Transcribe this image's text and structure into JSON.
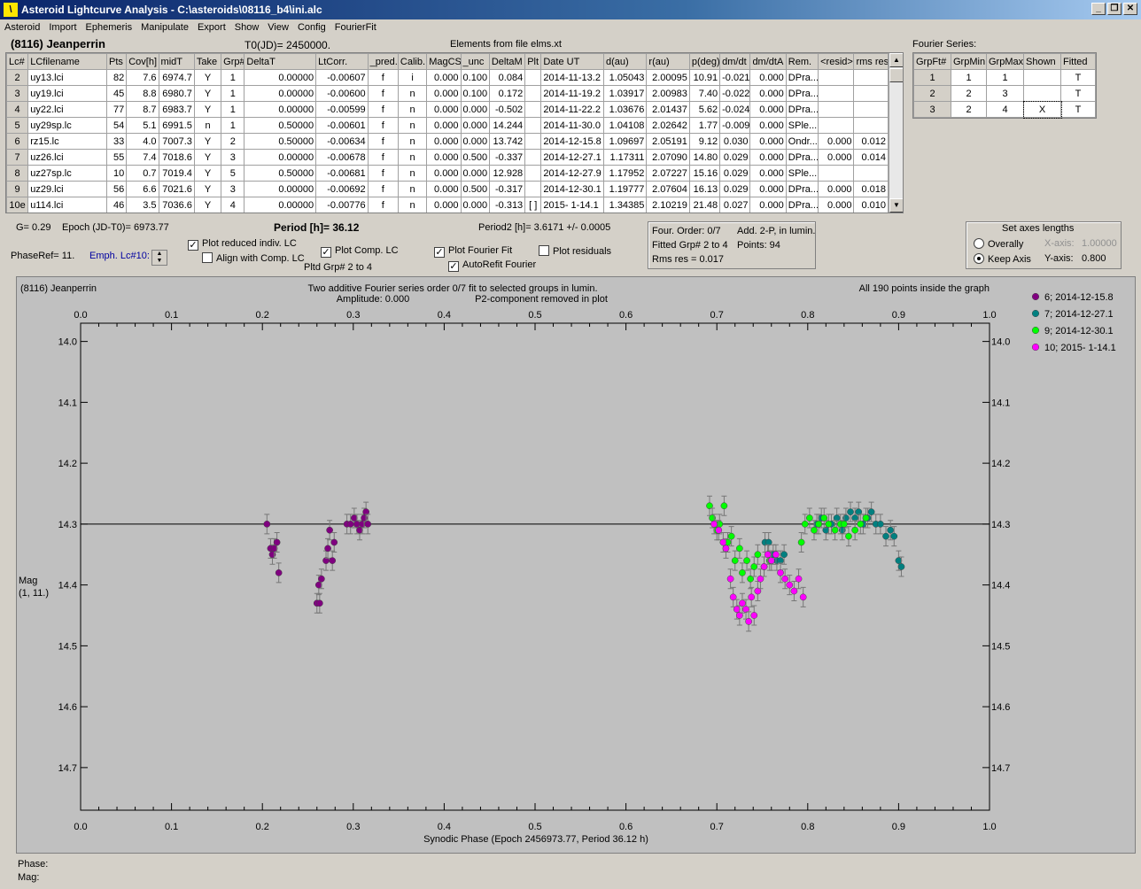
{
  "window": {
    "title": "Asteroid Lightcurve Analysis - C:\\asteroids\\08116_b4\\ini.alc",
    "buttons": [
      "_",
      "\u0005",
      "X"
    ]
  },
  "menu": [
    "Asteroid",
    "Import",
    "Ephemeris",
    "Manipulate",
    "Export",
    "Show",
    "View",
    "Config",
    "FourierFit"
  ],
  "header": {
    "asteroid": "(8116) Jeanperrin",
    "t0": "T0(JD)= 2450000.",
    "elements": "Elements from file elms.xt",
    "fourier_title": "Fourier Series:"
  },
  "table": {
    "columns": [
      "Lc#",
      "LCfilename",
      "Pts",
      "Cov[h]",
      "midT",
      "Take",
      "Grp#",
      "DeltaT",
      "LtCorr.",
      "_pred.",
      "Calib.",
      "MagCS",
      "_unc",
      "DeltaM",
      "Plt",
      "Date UT",
      "d(au)",
      "r(au)",
      "p(deg)",
      "dm/dt",
      "dm/dtA",
      "Rem.",
      "<resid>",
      "rms res"
    ],
    "rows": [
      [
        "2",
        "uy13.lci",
        "82",
        "7.6",
        "6974.7",
        "Y",
        "1",
        "0.00000",
        "-0.00607",
        "f",
        "i",
        "0.000",
        "0.100",
        "0.084",
        "",
        "2014-11-13.2",
        "1.05043",
        "2.00095",
        "10.91",
        "-0.021",
        "0.000",
        "DPra...",
        "",
        ""
      ],
      [
        "3",
        "uy19.lci",
        "45",
        "8.8",
        "6980.7",
        "Y",
        "1",
        "0.00000",
        "-0.00600",
        "f",
        "n",
        "0.000",
        "0.100",
        "0.172",
        "",
        "2014-11-19.2",
        "1.03917",
        "2.00983",
        "7.40",
        "-0.022",
        "0.000",
        "DPra...",
        "",
        ""
      ],
      [
        "4",
        "uy22.lci",
        "77",
        "8.7",
        "6983.7",
        "Y",
        "1",
        "0.00000",
        "-0.00599",
        "f",
        "n",
        "0.000",
        "0.000",
        "-0.502",
        "",
        "2014-11-22.2",
        "1.03676",
        "2.01437",
        "5.62",
        "-0.024",
        "0.000",
        "DPra...",
        "",
        ""
      ],
      [
        "5",
        "uy29sp.lc",
        "54",
        "5.1",
        "6991.5",
        "n",
        "1",
        "0.50000",
        "-0.00601",
        "f",
        "n",
        "0.000",
        "0.000",
        "14.244",
        "",
        "2014-11-30.0",
        "1.04108",
        "2.02642",
        "1.77",
        "-0.009",
        "0.000",
        "SPle...",
        "",
        ""
      ],
      [
        "6",
        "rz15.lc",
        "33",
        "4.0",
        "7007.3",
        "Y",
        "2",
        "0.50000",
        "-0.00634",
        "f",
        "n",
        "0.000",
        "0.000",
        "13.742",
        "",
        "2014-12-15.8",
        "1.09697",
        "2.05191",
        "9.12",
        "0.030",
        "0.000",
        "Ondr...",
        "0.000",
        "0.012"
      ],
      [
        "7",
        "uz26.lci",
        "55",
        "7.4",
        "7018.6",
        "Y",
        "3",
        "0.00000",
        "-0.00678",
        "f",
        "n",
        "0.000",
        "0.500",
        "-0.337",
        "",
        "2014-12-27.1",
        "1.17311",
        "2.07090",
        "14.80",
        "0.029",
        "0.000",
        "DPra...",
        "0.000",
        "0.014"
      ],
      [
        "8",
        "uz27sp.lc",
        "10",
        "0.7",
        "7019.4",
        "Y",
        "5",
        "0.50000",
        "-0.00681",
        "f",
        "n",
        "0.000",
        "0.000",
        "12.928",
        "",
        "2014-12-27.9",
        "1.17952",
        "2.07227",
        "15.16",
        "0.029",
        "0.000",
        "SPle...",
        "",
        ""
      ],
      [
        "9",
        "uz29.lci",
        "56",
        "6.6",
        "7021.6",
        "Y",
        "3",
        "0.00000",
        "-0.00692",
        "f",
        "n",
        "0.000",
        "0.500",
        "-0.317",
        "",
        "2014-12-30.1",
        "1.19777",
        "2.07604",
        "16.13",
        "0.029",
        "0.000",
        "DPra...",
        "0.000",
        "0.018"
      ],
      [
        "10e",
        "u114.lci",
        "46",
        "3.5",
        "7036.6",
        "Y",
        "4",
        "0.00000",
        "-0.00776",
        "f",
        "n",
        "0.000",
        "0.000",
        "-0.313",
        "[ ]",
        "2015- 1-14.1",
        "1.34385",
        "2.10219",
        "21.48",
        "0.027",
        "0.000",
        "DPra...",
        "0.000",
        "0.010"
      ]
    ]
  },
  "fourier_table": {
    "columns": [
      "GrpFt#",
      "GrpMin",
      "GrpMax",
      "Shown",
      "Fitted"
    ],
    "rows": [
      [
        "1",
        "1",
        "1",
        "",
        "T"
      ],
      [
        "2",
        "2",
        "3",
        "",
        "T"
      ],
      [
        "3",
        "2",
        "4",
        "X",
        "T"
      ]
    ]
  },
  "controls": {
    "g": "G= 0.29",
    "epoch": "Epoch (JD-T0)= 6973.77",
    "period": "Period [h]= 36.12",
    "period2": "Period2 [h]= 3.6171 +/- 0.0005",
    "phaseref": "PhaseRef= 11.",
    "emph": "Emph. Lc#10:",
    "cb_reduced": "Plot reduced indiv. LC",
    "cb_align": "Align with Comp. LC",
    "cb_comp": "Plot Comp. LC",
    "pltd_grp": "Pltd Grp#  2  to   4",
    "cb_fourier": "Plot Fourier Fit",
    "cb_autorefit": "AutoRefit Fourier",
    "cb_resid": "Plot residuals",
    "four_order": "Four. Order:  0/7",
    "add2p": "Add. 2-P, in lumin.",
    "fitted_grp": "Fitted Grp# 2 to 4",
    "points": "Points: 94",
    "rms": "Rms res     = 0.017",
    "axes_title": "Set axes lengths",
    "overall": "Overally",
    "keep": "Keep Axis",
    "xaxis_label": "X-axis:",
    "xaxis_val": "1.00000",
    "yaxis_label": "Y-axis:",
    "yaxis_val": "0.800"
  },
  "chart_data": {
    "type": "scatter",
    "title": "Two additive Fourier series order 0/7 fit to selected groups in lumin.",
    "subtitle_left": "(8116) Jeanperrin",
    "subtitle_right": "All 190 points inside the graph",
    "amplitude": "Amplitude: 0.000",
    "p2_note": "P2-component removed in plot",
    "xlabel": "Synodic Phase (Epoch 2456973.77, Period 36.12 h)",
    "ylabel": "Mag",
    "ylabel2": "(1, 11.)",
    "xlim": [
      0,
      1
    ],
    "ylim": [
      13.97,
      14.77
    ],
    "inverted_y": true,
    "xticks": [
      "0.0",
      "0.1",
      "0.2",
      "0.3",
      "0.4",
      "0.5",
      "0.6",
      "0.7",
      "0.8",
      "0.9",
      "1.0"
    ],
    "yticks": [
      "14.0",
      "14.1",
      "14.2",
      "14.3",
      "14.4",
      "14.5",
      "14.6",
      "14.7"
    ],
    "fit_line_y": 14.3,
    "legend": "top-right",
    "series": [
      {
        "name": "6; 2014-12-15.8",
        "color": "#800080",
        "points": [
          [
            0.205,
            14.3
          ],
          [
            0.209,
            14.34
          ],
          [
            0.211,
            14.35
          ],
          [
            0.213,
            14.34
          ],
          [
            0.216,
            14.33
          ],
          [
            0.218,
            14.38
          ],
          [
            0.26,
            14.43
          ],
          [
            0.262,
            14.4
          ],
          [
            0.263,
            14.43
          ],
          [
            0.265,
            14.39
          ],
          [
            0.27,
            14.36
          ],
          [
            0.272,
            14.34
          ],
          [
            0.274,
            14.31
          ],
          [
            0.277,
            14.36
          ],
          [
            0.279,
            14.33
          ],
          [
            0.293,
            14.3
          ],
          [
            0.297,
            14.3
          ],
          [
            0.301,
            14.29
          ],
          [
            0.304,
            14.3
          ],
          [
            0.307,
            14.31
          ],
          [
            0.31,
            14.3
          ],
          [
            0.312,
            14.29
          ],
          [
            0.314,
            14.28
          ],
          [
            0.316,
            14.3
          ]
        ]
      },
      {
        "name": "7; 2014-12-27.1",
        "color": "#008080",
        "points": [
          [
            0.753,
            14.33
          ],
          [
            0.757,
            14.33
          ],
          [
            0.762,
            14.35
          ],
          [
            0.766,
            14.36
          ],
          [
            0.77,
            14.36
          ],
          [
            0.774,
            14.35
          ],
          [
            0.81,
            14.3
          ],
          [
            0.815,
            14.29
          ],
          [
            0.82,
            14.31
          ],
          [
            0.826,
            14.3
          ],
          [
            0.832,
            14.29
          ],
          [
            0.838,
            14.31
          ],
          [
            0.842,
            14.29
          ],
          [
            0.847,
            14.28
          ],
          [
            0.852,
            14.29
          ],
          [
            0.856,
            14.28
          ],
          [
            0.861,
            14.3
          ],
          [
            0.866,
            14.29
          ],
          [
            0.87,
            14.28
          ],
          [
            0.875,
            14.3
          ],
          [
            0.88,
            14.3
          ],
          [
            0.886,
            14.32
          ],
          [
            0.891,
            14.31
          ],
          [
            0.895,
            14.32
          ],
          [
            0.9,
            14.36
          ],
          [
            0.903,
            14.37
          ]
        ]
      },
      {
        "name": "9; 2014-12-30.1",
        "color": "#00ff00",
        "points": [
          [
            0.692,
            14.27
          ],
          [
            0.695,
            14.29
          ],
          [
            0.7,
            14.31
          ],
          [
            0.703,
            14.3
          ],
          [
            0.708,
            14.27
          ],
          [
            0.712,
            14.33
          ],
          [
            0.716,
            14.32
          ],
          [
            0.72,
            14.36
          ],
          [
            0.725,
            14.34
          ],
          [
            0.728,
            14.38
          ],
          [
            0.733,
            14.36
          ],
          [
            0.737,
            14.39
          ],
          [
            0.741,
            14.37
          ],
          [
            0.745,
            14.35
          ],
          [
            0.752,
            14.37
          ],
          [
            0.758,
            14.36
          ],
          [
            0.793,
            14.33
          ],
          [
            0.797,
            14.3
          ],
          [
            0.802,
            14.29
          ],
          [
            0.807,
            14.31
          ],
          [
            0.812,
            14.3
          ],
          [
            0.818,
            14.29
          ],
          [
            0.823,
            14.3
          ],
          [
            0.83,
            14.31
          ],
          [
            0.836,
            14.3
          ],
          [
            0.84,
            14.3
          ],
          [
            0.845,
            14.32
          ],
          [
            0.852,
            14.31
          ],
          [
            0.858,
            14.3
          ],
          [
            0.864,
            14.29
          ]
        ]
      },
      {
        "name": "10; 2015- 1-14.1",
        "color": "#ff00ff",
        "points": [
          [
            0.697,
            14.3
          ],
          [
            0.702,
            14.31
          ],
          [
            0.707,
            14.33
          ],
          [
            0.71,
            14.34
          ],
          [
            0.715,
            14.39
          ],
          [
            0.718,
            14.42
          ],
          [
            0.722,
            14.44
          ],
          [
            0.725,
            14.45
          ],
          [
            0.728,
            14.43
          ],
          [
            0.732,
            14.44
          ],
          [
            0.735,
            14.46
          ],
          [
            0.738,
            14.42
          ],
          [
            0.741,
            14.45
          ],
          [
            0.745,
            14.41
          ],
          [
            0.748,
            14.39
          ],
          [
            0.752,
            14.37
          ],
          [
            0.756,
            14.35
          ],
          [
            0.76,
            14.36
          ],
          [
            0.765,
            14.35
          ],
          [
            0.77,
            14.38
          ],
          [
            0.775,
            14.39
          ],
          [
            0.78,
            14.4
          ],
          [
            0.785,
            14.41
          ],
          [
            0.79,
            14.39
          ],
          [
            0.795,
            14.42
          ]
        ]
      }
    ]
  },
  "status": {
    "phase": "Phase:",
    "mag": "Mag:"
  }
}
